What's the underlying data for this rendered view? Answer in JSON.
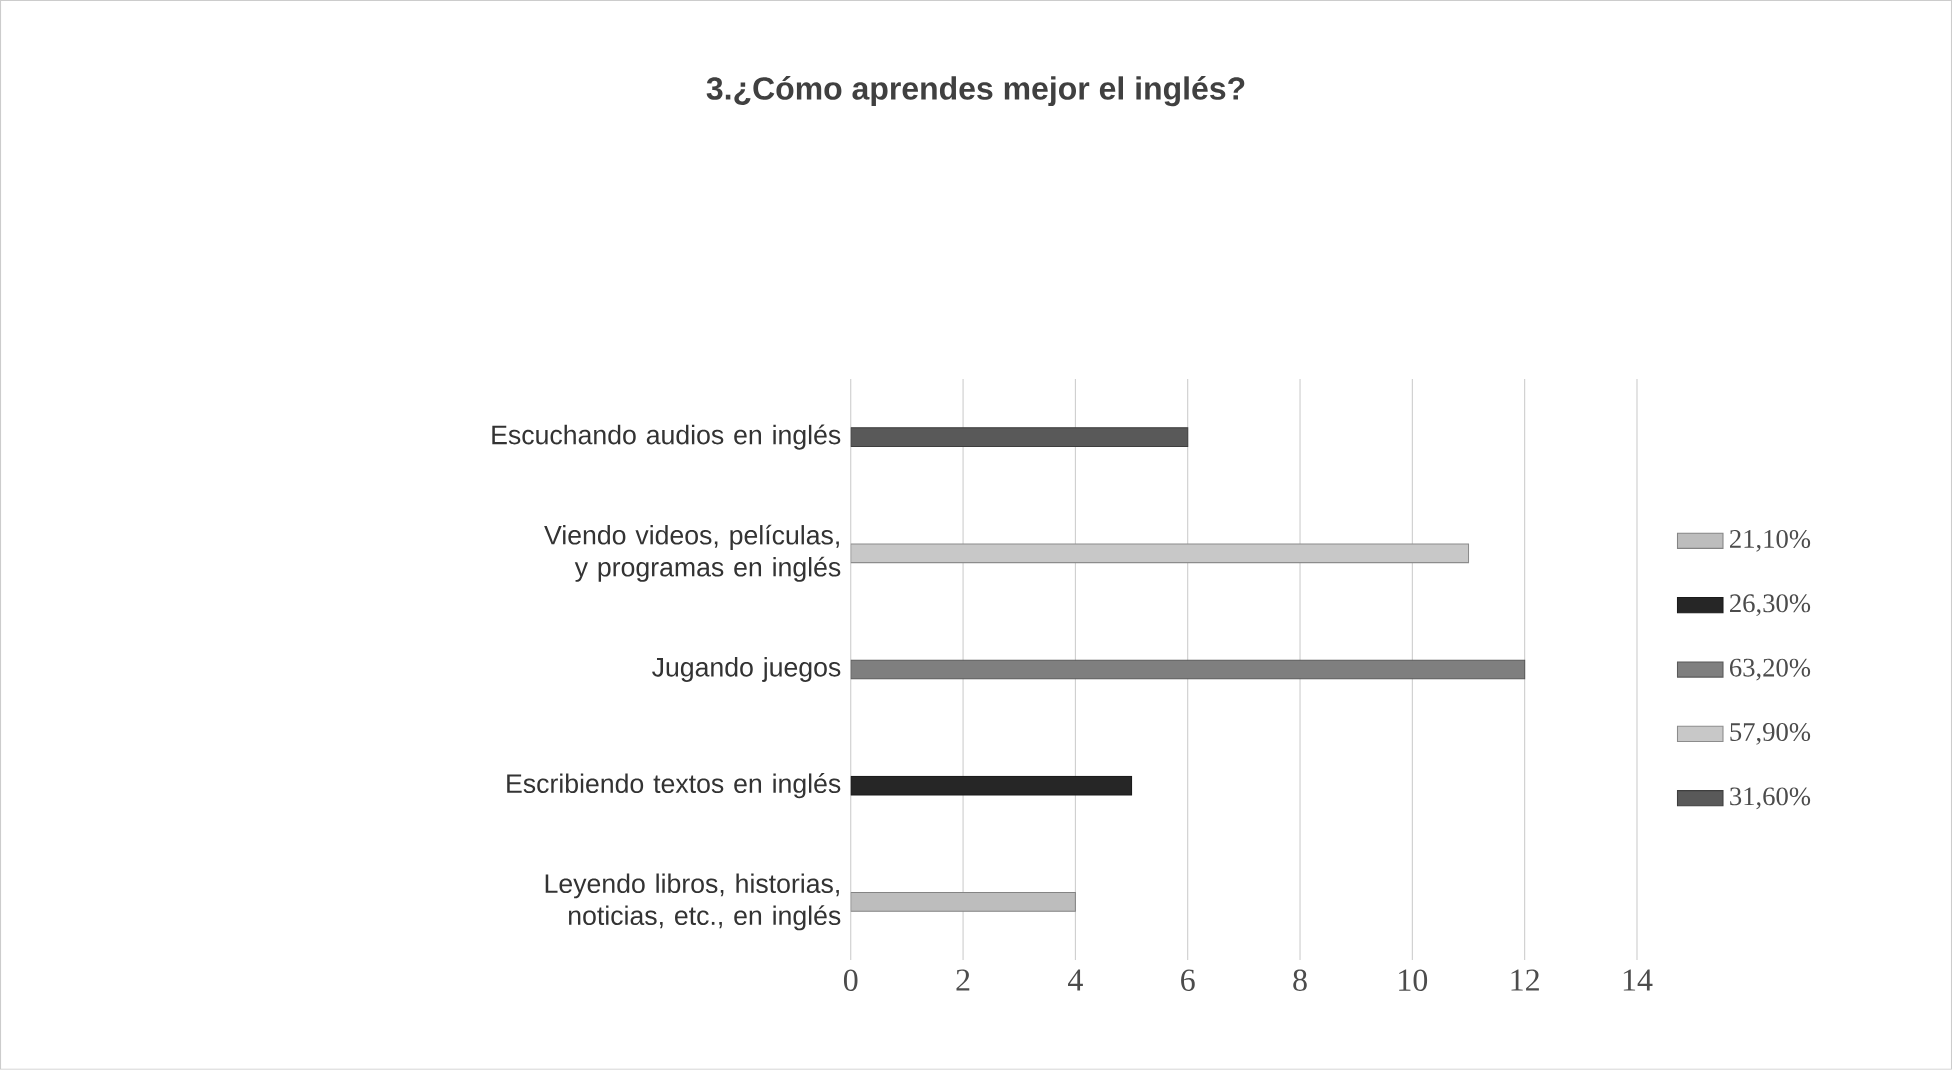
{
  "chart_data": {
    "type": "bar",
    "orientation": "horizontal",
    "title": "3.¿Cómo aprendes mejor el inglés?",
    "categories": [
      "Escuchando audios en inglés",
      "Viendo videos, películas, y programas en inglés",
      "Jugando juegos",
      "Escribiendo textos en inglés",
      "Leyendo libros, historias, noticias, etc., en inglés"
    ],
    "series": [
      {
        "name": "21,10%",
        "color": "#bdbdbd",
        "values": [
          null,
          null,
          null,
          null,
          4
        ]
      },
      {
        "name": "26,30%",
        "color": "#262626",
        "values": [
          null,
          null,
          null,
          5,
          null
        ]
      },
      {
        "name": "63,20%",
        "color": "#7f7f7f",
        "values": [
          null,
          null,
          12,
          null,
          null
        ]
      },
      {
        "name": "57,90%",
        "color": "#c8c8c8",
        "values": [
          null,
          11,
          null,
          null,
          null
        ]
      },
      {
        "name": "31,60%",
        "color": "#595959",
        "values": [
          6,
          null,
          null,
          null,
          null
        ]
      }
    ],
    "xlim": [
      0,
      14
    ],
    "xticks": [
      0,
      2,
      4,
      6,
      8,
      10,
      12,
      14
    ],
    "grid": "x",
    "legend": "right"
  }
}
